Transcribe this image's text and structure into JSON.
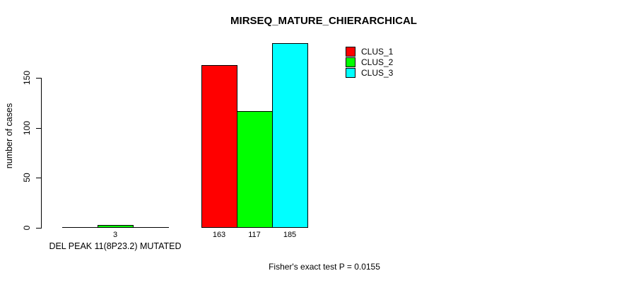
{
  "chart_data": {
    "type": "bar",
    "title": "MIRSEQ_MATURE_CHIERARCHICAL",
    "ylabel": "number of cases",
    "yticks": [
      0,
      50,
      100,
      150
    ],
    "ylim": [
      0,
      150
    ],
    "grid": false,
    "legend_position": "top-right",
    "categories": [
      "DEL PEAK 11(8P23.2) MUTATED",
      ""
    ],
    "series": [
      {
        "name": "CLUS_1",
        "color": "#ff0000",
        "values": [
          0,
          163
        ]
      },
      {
        "name": "CLUS_2",
        "color": "#00ff00",
        "values": [
          3,
          117
        ]
      },
      {
        "name": "CLUS_3",
        "color": "#00ffff",
        "values": [
          0,
          185
        ]
      }
    ],
    "bar_value_labels": [
      [
        "",
        "3",
        ""
      ],
      [
        "163",
        "117",
        "185"
      ]
    ],
    "annotation": "Fisher's exact test P = 0.0155",
    "axis_color": "#000000",
    "bar_border_color": "#000000"
  }
}
